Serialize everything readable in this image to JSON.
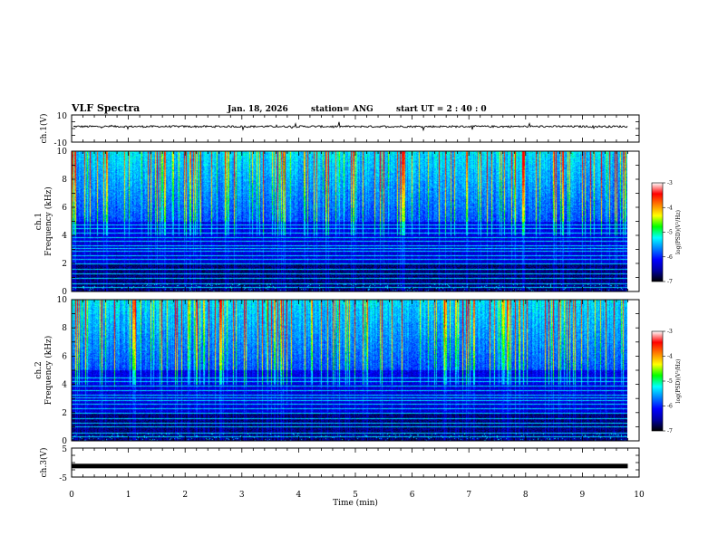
{
  "header": {
    "title": "VLF Spectra",
    "date": "Jan. 18, 2026",
    "station": "station= ANG",
    "start_ut": "start  UT =   2 : 40 : 0"
  },
  "chart_data": [
    {
      "type": "line",
      "name": "ch1-waveform",
      "ylabel": "ch.1(V)",
      "ylim": [
        -10,
        10
      ],
      "yticks": [
        "10",
        "-10"
      ],
      "xlim": [
        0,
        10
      ],
      "trace_level": 1.5,
      "trace_noise": 1.0,
      "trace_end": 9.8
    },
    {
      "type": "heatmap",
      "name": "ch1-spectrogram",
      "ylabel": "ch.1",
      "ylabel2": "Frequency (kHz)",
      "ylim": [
        0,
        10
      ],
      "yticks": [
        "0",
        "2",
        "4",
        "6",
        "8",
        "10"
      ],
      "xlim": [
        0,
        10
      ],
      "data_end": 9.8,
      "colorbar": {
        "label": "log(PSD)(V²/Hz)",
        "range": [
          -7,
          -3
        ],
        "ticks": [
          "-3",
          "-4",
          "-5",
          "-6",
          "-7"
        ]
      },
      "emission_lines_khz": [
        0.3,
        0.6,
        1.0,
        1.3,
        1.6,
        2.0,
        2.3,
        2.6,
        2.9,
        3.1,
        3.3,
        3.6,
        3.9,
        4.2,
        4.5,
        4.8
      ]
    },
    {
      "type": "heatmap",
      "name": "ch2-spectrogram",
      "ylabel": "ch.2",
      "ylabel2": "Frequency (kHz)",
      "ylim": [
        0,
        10
      ],
      "yticks": [
        "0",
        "2",
        "4",
        "6",
        "8",
        "10"
      ],
      "xlim": [
        0,
        10
      ],
      "data_end": 9.8,
      "colorbar": {
        "label": "log(PSD)(V²/Hz)",
        "range": [
          -7,
          -3
        ],
        "ticks": [
          "-3",
          "-4",
          "-5",
          "-6",
          "-7"
        ]
      },
      "emission_lines_khz": [
        0.3,
        0.6,
        1.0,
        1.3,
        1.6,
        2.0,
        2.3,
        2.6,
        2.9,
        3.1,
        3.3,
        3.6,
        3.9,
        4.2,
        4.5
      ]
    },
    {
      "type": "line",
      "name": "ch3-waveform",
      "ylabel": "ch.3(V)",
      "ylim": [
        -5,
        5
      ],
      "yticks": [
        "5",
        "-5"
      ],
      "xlim": [
        0,
        10
      ],
      "trace_level": -1.2,
      "trace_noise": 0.0,
      "trace_end": 9.8
    }
  ],
  "xaxis": {
    "label": "Time (min)",
    "ticks": [
      "0",
      "1",
      "2",
      "3",
      "4",
      "5",
      "6",
      "7",
      "8",
      "9",
      "10"
    ]
  },
  "colors": {
    "background": "#ffffff",
    "axes": "#000000",
    "colormap": [
      "#000000",
      "#0000a0",
      "#0000ff",
      "#0080ff",
      "#00ffff",
      "#00ff00",
      "#ffff00",
      "#ff8000",
      "#ff0000",
      "#ffffff"
    ]
  }
}
